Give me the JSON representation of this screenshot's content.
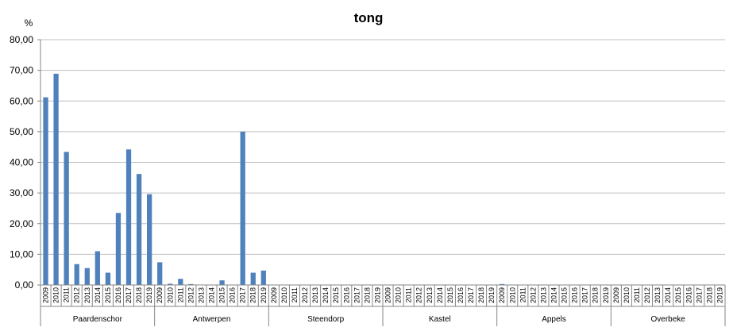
{
  "chart_data": {
    "type": "bar",
    "title": "tong",
    "ylabel": "%",
    "ylim": [
      0,
      80
    ],
    "yticks": [
      "0,00",
      "10,00",
      "20,00",
      "30,00",
      "40,00",
      "50,00",
      "60,00",
      "70,00",
      "80,00"
    ],
    "years": [
      "2009",
      "2010",
      "2011",
      "2012",
      "2013",
      "2014",
      "2015",
      "2016",
      "2017",
      "2018",
      "2019"
    ],
    "grid": "horizontal",
    "bar_color": "#4f81bd",
    "groups": [
      {
        "name": "Paardenschor",
        "values": [
          61.2,
          68.9,
          43.4,
          6.8,
          5.5,
          11.0,
          4.0,
          23.5,
          44.2,
          36.2,
          29.6
        ]
      },
      {
        "name": "Antwerpen",
        "values": [
          7.4,
          0.4,
          2.0,
          0.3,
          0,
          0,
          1.5,
          0,
          50.0,
          4.0,
          4.7
        ]
      },
      {
        "name": "Steendorp",
        "values": [
          0,
          0,
          0,
          0,
          0,
          0,
          0,
          0,
          0,
          0,
          0
        ]
      },
      {
        "name": "Kastel",
        "values": [
          0,
          0,
          0,
          0,
          0,
          0,
          0,
          0,
          0,
          0,
          0
        ]
      },
      {
        "name": "Appels",
        "values": [
          0.3,
          0,
          0,
          0,
          0,
          0,
          0,
          0,
          0,
          0,
          0
        ]
      },
      {
        "name": "Overbeke",
        "values": [
          0,
          0,
          0,
          0,
          0,
          0,
          0,
          0,
          0,
          0,
          0
        ]
      }
    ]
  }
}
